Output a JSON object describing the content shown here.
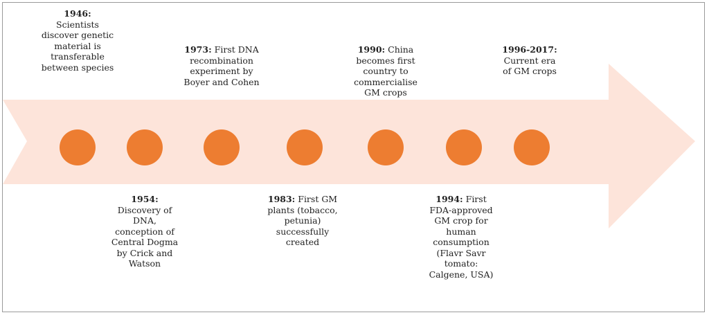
{
  "colors": {
    "arrow": "#fde4da",
    "dot": "#ed7d31",
    "text": "#222222"
  },
  "events": [
    {
      "year": "1946:",
      "text": "Scientists discover genetic material is transferable between species",
      "position": "above"
    },
    {
      "year": "1954:",
      "text": "Discovery of DNA, conception of Central Dogma by Crick and Watson",
      "position": "below"
    },
    {
      "year": "1973:",
      "text": "First DNA recombination experiment by Boyer and Cohen",
      "position": "above"
    },
    {
      "year": "1983:",
      "text": "First GM plants (tobacco, petunia) successfully created",
      "position": "below"
    },
    {
      "year": "1990:",
      "text": "China becomes first country to commercialise GM crops",
      "position": "above"
    },
    {
      "year": "1994:",
      "text": "First FDA-approved GM crop for human consumption (Flavr Savr tomato: Calgene, USA)",
      "position": "below"
    },
    {
      "year": "1996-2017:",
      "text": "Current era of GM crops",
      "position": "above"
    }
  ]
}
